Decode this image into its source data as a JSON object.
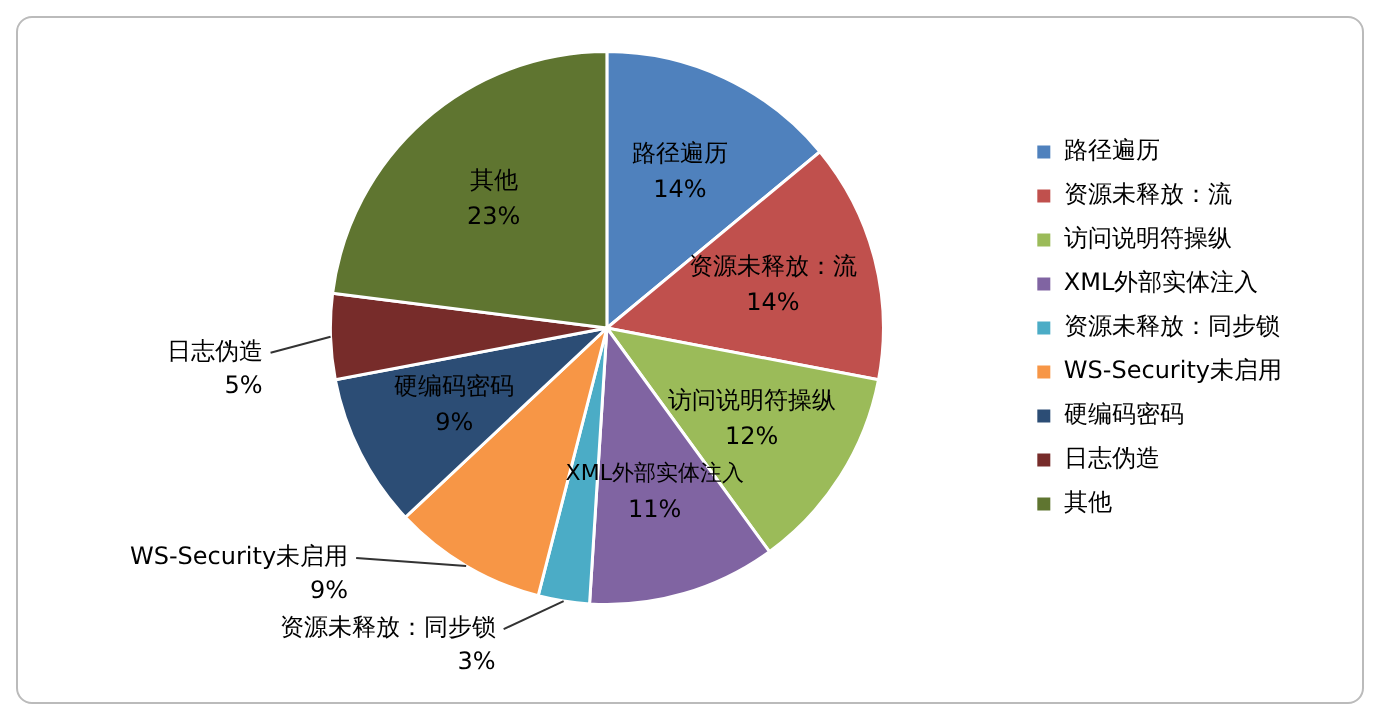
{
  "chart_data": {
    "type": "pie",
    "categories": [
      "路径遍历",
      "资源未释放：流",
      "访问说明符操纵",
      "XML外部实体注入",
      "资源未释放：同步锁",
      "WS-Security未启用",
      "硬编码密码",
      "日志伪造",
      "其他"
    ],
    "values": [
      14,
      14,
      12,
      11,
      3,
      9,
      9,
      5,
      23
    ],
    "value_labels": [
      "14%",
      "14%",
      "12%",
      "11%",
      "3%",
      "9%",
      "9%",
      "5%",
      "23%"
    ],
    "colors": [
      "#4f81bd",
      "#c0504d",
      "#9bbb59",
      "#8064a2",
      "#4bacc6",
      "#f79646",
      "#2c4d75",
      "#772c2a",
      "#5f7530"
    ],
    "legend": "right"
  }
}
